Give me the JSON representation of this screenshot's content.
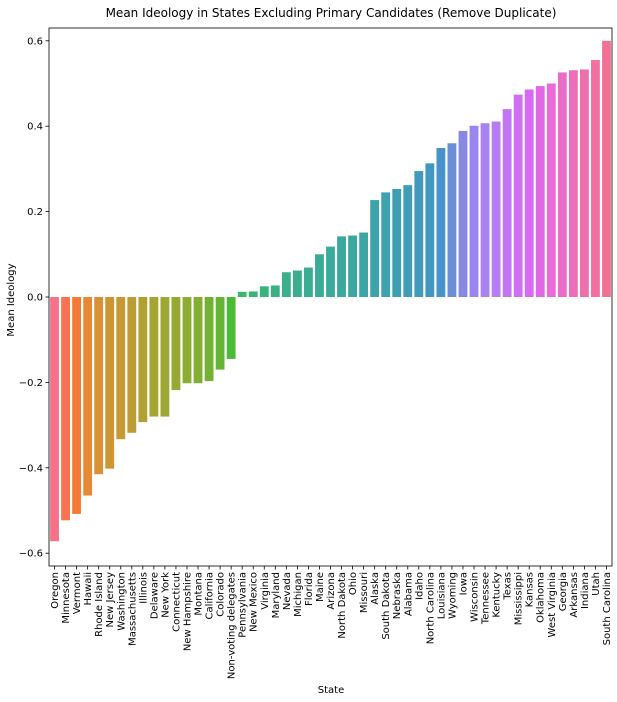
{
  "chart_data": {
    "type": "bar",
    "title": "Mean Ideology in States Excluding Primary Candidates (Remove Duplicate)",
    "xlabel": "State",
    "ylabel": "Mean Ideology",
    "ylim": [
      -0.63,
      0.63
    ],
    "yticks": [
      -0.6,
      -0.4,
      -0.2,
      0.0,
      0.2,
      0.4,
      0.6
    ],
    "ytick_labels": [
      "−0.6",
      "−0.4",
      "−0.2",
      "0.0",
      "0.2",
      "0.4",
      "0.6"
    ],
    "grid": false,
    "categories": [
      "Oregon",
      "Minnesota",
      "Vermont",
      "Hawaii",
      "Rhode Island",
      "New Jersey",
      "Washington",
      "Massachusetts",
      "Illinois",
      "Delaware",
      "New York",
      "Connecticut",
      "New Hampshire",
      "Montana",
      "California",
      "Colorado",
      "Non-voting delegates",
      "Pennsylvania",
      "New Mexico",
      "Virginia",
      "Maryland",
      "Nevada",
      "Michigan",
      "Florida",
      "Maine",
      "Arizona",
      "North Dakota",
      "Ohio",
      "Missouri",
      "Alaska",
      "South Dakota",
      "Nebraska",
      "Alabama",
      "Idaho",
      "North Carolina",
      "Louisiana",
      "Wyoming",
      "Iowa",
      "Wisconsin",
      "Tennessee",
      "Kentucky",
      "Texas",
      "Mississippi",
      "Kansas",
      "Oklahoma",
      "West Virginia",
      "Georgia",
      "Arkansas",
      "Indiana",
      "Utah",
      "South Carolina"
    ],
    "values": [
      -0.572,
      -0.523,
      -0.508,
      -0.465,
      -0.415,
      -0.402,
      -0.333,
      -0.318,
      -0.293,
      -0.28,
      -0.28,
      -0.218,
      -0.202,
      -0.202,
      -0.197,
      -0.17,
      -0.145,
      0.012,
      0.013,
      0.025,
      0.027,
      0.058,
      0.062,
      0.069,
      0.1,
      0.118,
      0.142,
      0.144,
      0.151,
      0.227,
      0.245,
      0.253,
      0.262,
      0.295,
      0.313,
      0.349,
      0.36,
      0.389,
      0.401,
      0.407,
      0.411,
      0.44,
      0.474,
      0.486,
      0.494,
      0.5,
      0.526,
      0.531,
      0.533,
      0.555,
      0.6
    ],
    "colors": [
      "#f77189",
      "#f7744e",
      "#f47a35",
      "#e58a34",
      "#da9034",
      "#d09533",
      "#c69933",
      "#bc9d33",
      "#b2a132",
      "#a7a432",
      "#9ea732",
      "#96a932",
      "#8cac32",
      "#82ae32",
      "#74b233",
      "#63b533",
      "#4bba36",
      "#36b96a",
      "#37b677",
      "#38b47e",
      "#38b285",
      "#39b08a",
      "#39ae8f",
      "#3aad93",
      "#3aab97",
      "#3aaa9b",
      "#3ba89e",
      "#3ba6a2",
      "#3ca5a6",
      "#3da3aa",
      "#3da1ae",
      "#3e9fb2",
      "#3f9db7",
      "#409abb",
      "#4297c1",
      "#4694c9",
      "#6b8fd6",
      "#8689e3",
      "#9885ed",
      "#a981f2",
      "#b67cf4",
      "#c376f4",
      "#cf70f4",
      "#da6af4",
      "#e068e6",
      "#e96bd9",
      "#ea6cc9",
      "#ed6eba",
      "#ef6fac",
      "#f2709f",
      "#f57193"
    ]
  }
}
